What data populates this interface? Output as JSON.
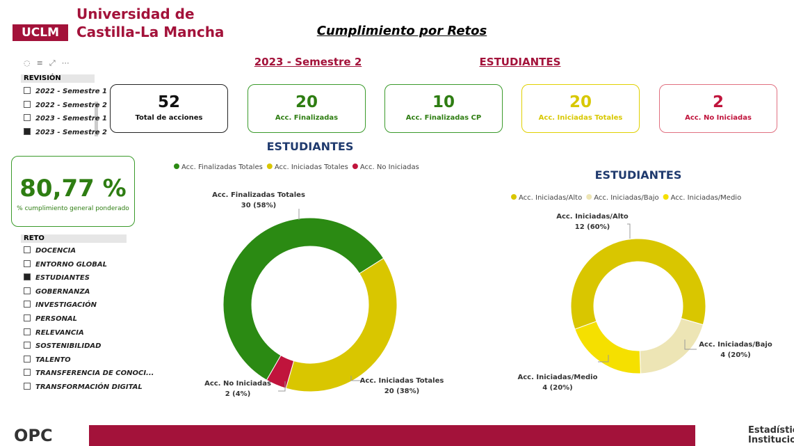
{
  "header": {
    "logo": "UCLM",
    "university_line1": "Universidad de",
    "university_line2": "Castilla-La Mancha",
    "title": "Cumplimiento por Retos",
    "period": "2023 - Semestre 2",
    "group": "ESTUDIANTES"
  },
  "revision": {
    "title": "REVISIÓN",
    "items": [
      {
        "label": "2022 - Semestre 1",
        "checked": false
      },
      {
        "label": "2022 - Semestre 2",
        "checked": false
      },
      {
        "label": "2023 - Semestre 1",
        "checked": false
      },
      {
        "label": "2023 - Semestre 2",
        "checked": true
      }
    ]
  },
  "kpis": [
    {
      "value": 52,
      "label": "Total de acciones",
      "color": "#111111",
      "border": "#222222"
    },
    {
      "value": 20,
      "label": "Acc. Finalizadas",
      "color": "#2e7d12",
      "border": "#3a9a2a"
    },
    {
      "value": 10,
      "label": "Acc. Finalizadas CP",
      "color": "#2e7d12",
      "border": "#3a9a2a"
    },
    {
      "value": 20,
      "label": "Acc. Iniciadas Totales",
      "color": "#d8c800",
      "border": "#e0d000"
    },
    {
      "value": 2,
      "label": "Acc. No Iniciadas",
      "color": "#c0143c",
      "border": "#e07080"
    }
  ],
  "compliance": {
    "value": "80,77 %",
    "label": "% cumplimiento general ponderado"
  },
  "reto": {
    "title": "RETO",
    "items": [
      {
        "label": "DOCENCIA",
        "checked": false
      },
      {
        "label": "ENTORNO GLOBAL",
        "checked": false
      },
      {
        "label": "ESTUDIANTES",
        "checked": true
      },
      {
        "label": "GOBERNANZA",
        "checked": false
      },
      {
        "label": "INVESTIGACIÓN",
        "checked": false
      },
      {
        "label": "PERSONAL",
        "checked": false
      },
      {
        "label": "RELEVANCIA",
        "checked": false
      },
      {
        "label": "SOSTENIBILIDAD",
        "checked": false
      },
      {
        "label": "TALENTO",
        "checked": false
      },
      {
        "label": "TRANSFERENCIA DE CONOCI...",
        "checked": false
      },
      {
        "label": "TRANSFORMACIÓN DIGITAL",
        "checked": false
      }
    ]
  },
  "chart_data": [
    {
      "type": "pie",
      "donut": true,
      "title": "ESTUDIANTES",
      "categories": [
        "Acc. Finalizadas Totales",
        "Acc. Iniciadas Totales",
        "Acc. No Iniciadas"
      ],
      "values": [
        30,
        20,
        2
      ],
      "value_labels": [
        "30 (58%)",
        "20 (38%)",
        "2 (4%)"
      ],
      "colors": [
        "#2b8a13",
        "#d9c600",
        "#c0143c"
      ]
    },
    {
      "type": "pie",
      "donut": true,
      "title": "ESTUDIANTES",
      "categories": [
        "Acc. Iniciadas/Alto",
        "Acc. Iniciadas/Bajo",
        "Acc. Iniciadas/Medio"
      ],
      "values": [
        12,
        4,
        4
      ],
      "value_labels": [
        "12 (60%)",
        "4 (20%)",
        "4 (20%)"
      ],
      "colors": [
        "#d9c600",
        "#ede5b5",
        "#f5e000"
      ]
    }
  ],
  "footer": {
    "left_logo": "OPC",
    "right_line1": "Estadística",
    "right_line2": "Institucional"
  }
}
